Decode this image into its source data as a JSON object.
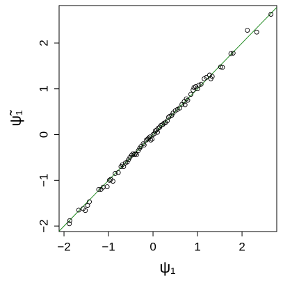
{
  "chart_data": {
    "type": "scatter",
    "x_label": "ψ₁",
    "y_label": "ψ̃₁",
    "x": [
      -1.88,
      -1.87,
      -1.67,
      -1.57,
      -1.52,
      -1.47,
      -1.43,
      -1.22,
      -1.17,
      -1.12,
      -1.03,
      -0.98,
      -0.95,
      -0.9,
      -0.85,
      -0.78,
      -0.72,
      -0.69,
      -0.66,
      -0.62,
      -0.58,
      -0.55,
      -0.52,
      -0.48,
      -0.45,
      -0.42,
      -0.4,
      -0.37,
      -0.33,
      -0.3,
      -0.27,
      -0.22,
      -0.2,
      -0.15,
      -0.12,
      -0.1,
      -0.07,
      -0.05,
      -0.02,
      0,
      0.03,
      0.05,
      0.08,
      0.1,
      0.12,
      0.15,
      0.18,
      0.22,
      0.25,
      0.28,
      0.32,
      0.35,
      0.38,
      0.42,
      0.45,
      0.5,
      0.55,
      0.6,
      0.65,
      0.7,
      0.72,
      0.75,
      0.78,
      0.85,
      0.9,
      0.92,
      0.96,
      1.0,
      1.03,
      1.08,
      1.15,
      1.2,
      1.27,
      1.3,
      1.33,
      1.52,
      1.56,
      1.75,
      1.8,
      2.12,
      2.33,
      2.65
    ],
    "y": [
      -1.95,
      -1.88,
      -1.65,
      -1.62,
      -1.66,
      -1.55,
      -1.47,
      -1.2,
      -1.2,
      -1.15,
      -1.14,
      -1.0,
      -0.98,
      -1.02,
      -0.85,
      -0.83,
      -0.7,
      -0.66,
      -0.7,
      -0.62,
      -0.6,
      -0.55,
      -0.5,
      -0.45,
      -0.42,
      -0.44,
      -0.42,
      -0.44,
      -0.35,
      -0.3,
      -0.26,
      -0.2,
      -0.23,
      -0.12,
      -0.1,
      -0.08,
      -0.05,
      -0.12,
      -0.1,
      0,
      0.02,
      0.08,
      0.1,
      0.05,
      0.14,
      0.16,
      0.2,
      0.22,
      0.25,
      0.26,
      0.3,
      0.38,
      0.4,
      0.42,
      0.47,
      0.52,
      0.55,
      0.58,
      0.66,
      0.72,
      0.65,
      0.78,
      0.75,
      0.88,
      0.97,
      1.03,
      1.05,
      1.0,
      1.08,
      1.1,
      1.22,
      1.25,
      1.3,
      1.22,
      1.27,
      1.48,
      1.47,
      1.77,
      1.78,
      2.28,
      2.24,
      2.63
    ],
    "point_color": "#000000",
    "abline": {
      "intercept": 0,
      "slope": 1,
      "color": "#228b22"
    },
    "xlim": [
      -2.11,
      2.78
    ],
    "ylim": [
      -2.12,
      2.82
    ],
    "xticks": [
      {
        "value": -2,
        "label": "−2"
      },
      {
        "value": -1,
        "label": "−1"
      },
      0,
      1,
      2
    ],
    "yticks": [
      {
        "value": -2,
        "label": "−2"
      },
      {
        "value": -1,
        "label": "−1"
      },
      0,
      1,
      2
    ]
  }
}
